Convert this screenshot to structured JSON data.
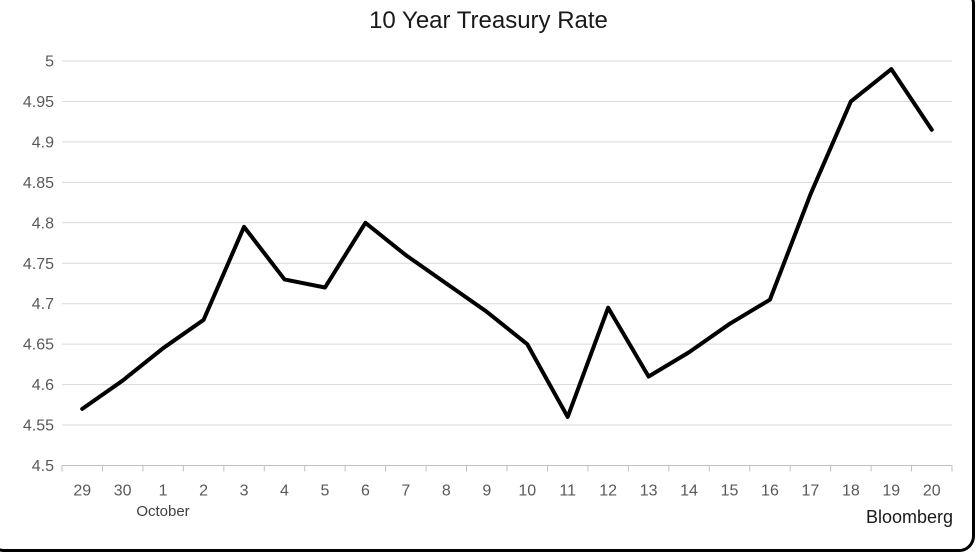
{
  "page": {
    "background": "#ffffff",
    "frame_color": "#000000"
  },
  "chart_data": {
    "type": "line",
    "title": "10 Year Treasury Rate",
    "source_label": "Bloomberg",
    "xlabel": "",
    "ylabel": "",
    "grid": true,
    "legend": "none",
    "ylim": [
      4.5,
      5
    ],
    "x_axis": {
      "tick_labels": [
        "29",
        "30",
        "1",
        "2",
        "3",
        "4",
        "5",
        "6",
        "7",
        "8",
        "9",
        "10",
        "11",
        "12",
        "13",
        "14",
        "15",
        "16",
        "17",
        "18",
        "19",
        "20"
      ],
      "month_label": "October",
      "month_label_index": 2
    },
    "y_axis": {
      "min": 4.5,
      "max": 5,
      "step": 0.05,
      "tick_labels": [
        "5",
        "4.95",
        "4.9",
        "4.85",
        "4.8",
        "4.75",
        "4.7",
        "4.65",
        "4.6",
        "4.55",
        "4.5"
      ]
    },
    "series": [
      {
        "name": "10 Year Treasury Rate",
        "color": "#000000",
        "values": [
          4.57,
          4.605,
          4.645,
          4.68,
          4.795,
          4.73,
          4.72,
          4.8,
          4.76,
          4.725,
          4.69,
          4.65,
          4.56,
          4.695,
          4.61,
          4.64,
          4.675,
          4.705,
          4.835,
          4.95,
          4.99,
          4.915
        ]
      }
    ],
    "colors": {
      "gridline": "#d9d9d9",
      "axis": "#bfbfbf",
      "tick_text": "#595959",
      "title_text": "#1a1a1a"
    }
  }
}
